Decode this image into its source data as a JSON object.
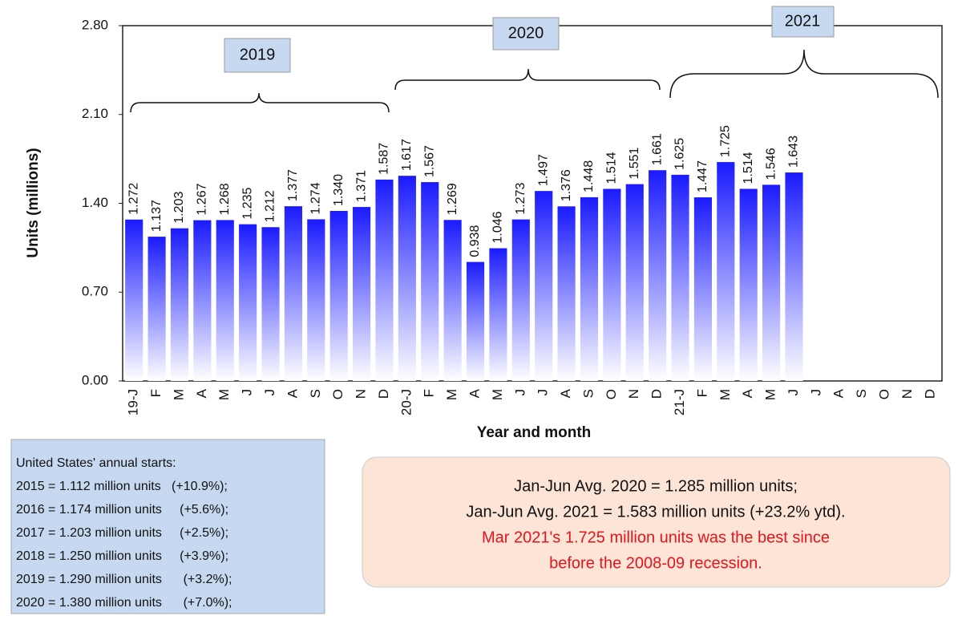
{
  "chart_data": {
    "type": "bar",
    "y_label": "Units (millions)",
    "x_label": "Year and month",
    "categories": [
      "19-J",
      "F",
      "M",
      "A",
      "M",
      "J",
      "J",
      "A",
      "S",
      "O",
      "N",
      "D",
      "20-J",
      "F",
      "M",
      "A",
      "M",
      "J",
      "J",
      "A",
      "S",
      "O",
      "N",
      "D",
      "21-J",
      "F",
      "M",
      "A",
      "M",
      "J",
      "J",
      "A",
      "S",
      "O",
      "N",
      "D"
    ],
    "values": [
      1.272,
      1.137,
      1.203,
      1.267,
      1.268,
      1.235,
      1.212,
      1.377,
      1.274,
      1.34,
      1.371,
      1.587,
      1.617,
      1.567,
      1.269,
      0.938,
      1.046,
      1.273,
      1.497,
      1.376,
      1.448,
      1.514,
      1.551,
      1.661,
      1.625,
      1.447,
      1.725,
      1.514,
      1.546,
      1.643,
      null,
      null,
      null,
      null,
      null,
      null
    ],
    "value_labels": [
      "1.272",
      "1.137",
      "1.203",
      "1.267",
      "1.268",
      "1.235",
      "1.212",
      "1.377",
      "1.274",
      "1.340",
      "1.371",
      "1.587",
      "1.617",
      "1.567",
      "1.269",
      "0.938",
      "1.046",
      "1.273",
      "1.497",
      "1.376",
      "1.448",
      "1.514",
      "1.551",
      "1.661",
      "1.625",
      "1.447",
      "1.725",
      "1.514",
      "1.546",
      "1.643",
      null,
      null,
      null,
      null,
      null,
      null
    ],
    "color": "#1a1aff",
    "ylim": [
      0,
      2.8
    ],
    "yticks": [
      {
        "value": 0,
        "label": "0.00"
      },
      {
        "value": 0.7,
        "label": "0.70"
      },
      {
        "value": 1.4,
        "label": "1.40"
      },
      {
        "value": 2.1,
        "label": "2.10"
      },
      {
        "value": 2.8,
        "label": "2.80"
      }
    ],
    "years": [
      "2019",
      "2020",
      "2021"
    ],
    "left_box": [
      "United States' annual starts:",
      "2015 = 1.112 million units   (+10.9%);",
      "2016 = 1.174 million units     (+5.6%);",
      "2017 = 1.203 million units     (+2.5%);",
      "2018 = 1.250 million units     (+3.9%);",
      "2019 = 1.290 million units      (+3.2%);",
      "2020 = 1.380 million units      (+7.0%);"
    ],
    "right_box": [
      "Jan-Jun Avg. 2020 = 1.285 million units;",
      "Jan-Jun Avg. 2021 = 1.583 million units (+23.2% ytd).",
      "Mar 2021's 1.725 million units was the best since",
      "before the 2008-09 recession."
    ]
  }
}
